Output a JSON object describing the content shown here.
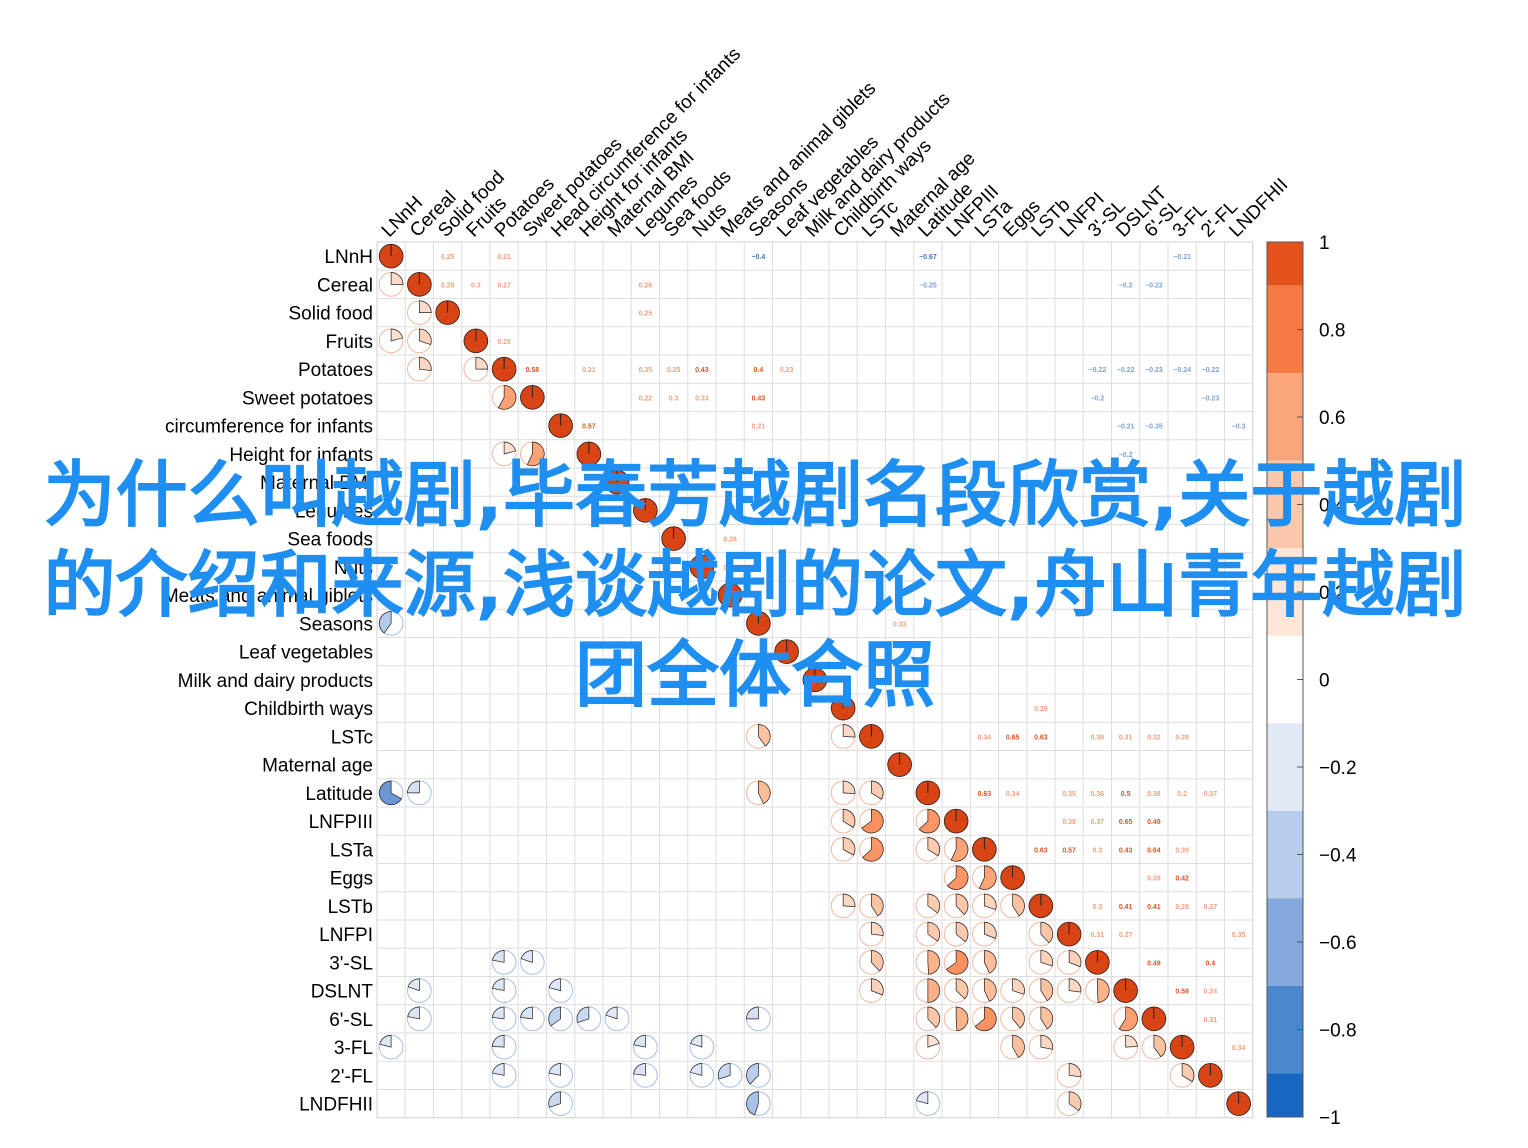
{
  "overlay_title": "为什么叫越剧,毕春芳越剧名段欣赏,关于越剧的介绍和来源,浅谈越剧的论文,舟山青年越剧团全体合照",
  "chart_data": {
    "type": "heatmap",
    "method": "pie",
    "variables": [
      "LNnH",
      "Cereal",
      "Solid food",
      "Fruits",
      "Potatoes",
      "Sweet potatoes",
      "circumference for infants",
      "Height for infants",
      "Maternal BMI",
      "Legumes",
      "Sea foods",
      "Nuts",
      "Meats and animal giblets",
      "Seasons",
      "Leaf vegetables",
      "Milk and dairy products",
      "Childbirth ways",
      "LSTc",
      "Maternal age",
      "Latitude",
      "LNFPIII",
      "LSTa",
      "Eggs",
      "LSTb",
      "LNFPI",
      "3'-SL",
      "DSLNT",
      "6'-SL",
      "3-FL",
      "2'-FL",
      "LNDFHII"
    ],
    "column_labels": [
      "LNnH",
      "Cereal",
      "Solid food",
      "Fruits",
      "Potatoes",
      "Sweet potatoes",
      "Head circumference for infants",
      "Height for infants",
      "Maternal BMI",
      "Legumes",
      "Sea foods",
      "Nuts",
      "Meats and animal giblets",
      "Seasons",
      "Leaf vegetables",
      "Milk and dairy products",
      "Childbirth ways",
      "LSTc",
      "Maternal age",
      "Latitude",
      "LNFPIII",
      "LSTa",
      "Eggs",
      "LSTb",
      "LNFPI",
      "3'-SL",
      "DSLNT",
      "6'-SL",
      "3-FL",
      "2'-FL",
      "LNDFHII"
    ],
    "colorbar": {
      "ticks": [
        "1",
        "0.8",
        "0.6",
        "0.4",
        "0.2",
        "0",
        "−0.2",
        "−0.4",
        "−0.6",
        "−0.8",
        "−1"
      ],
      "colors": [
        "#e3511c",
        "#f67a44",
        "#fba57a",
        "#fcc8ab",
        "#fde5d8",
        "#ffffff",
        "#e1e9f7",
        "#b8cdec",
        "#85a9dc",
        "#4b87cd",
        "#1666c2"
      ],
      "range": [
        -1,
        1
      ]
    },
    "upper_values": [
      [
        0,
        2,
        0.25
      ],
      [
        0,
        4,
        0.21
      ],
      [
        0,
        13,
        -0.4
      ],
      [
        0,
        19,
        -0.67
      ],
      [
        0,
        28,
        -0.21
      ],
      [
        1,
        2,
        0.25
      ],
      [
        1,
        3,
        0.3
      ],
      [
        1,
        4,
        0.27
      ],
      [
        1,
        9,
        0.26
      ],
      [
        1,
        19,
        -0.25
      ],
      [
        1,
        26,
        -0.2
      ],
      [
        1,
        27,
        -0.22
      ],
      [
        2,
        9,
        0.25
      ],
      [
        3,
        4,
        0.25
      ],
      [
        4,
        5,
        0.58
      ],
      [
        4,
        7,
        0.21
      ],
      [
        4,
        9,
        0.35
      ],
      [
        4,
        10,
        0.25
      ],
      [
        4,
        11,
        0.43
      ],
      [
        4,
        13,
        0.4
      ],
      [
        4,
        14,
        0.23
      ],
      [
        4,
        25,
        -0.22
      ],
      [
        4,
        26,
        -0.22
      ],
      [
        4,
        27,
        -0.23
      ],
      [
        4,
        28,
        -0.24
      ],
      [
        4,
        29,
        -0.22
      ],
      [
        5,
        9,
        0.22
      ],
      [
        5,
        10,
        0.3
      ],
      [
        5,
        11,
        0.33
      ],
      [
        5,
        13,
        0.43
      ],
      [
        5,
        25,
        -0.2
      ],
      [
        5,
        29,
        -0.23
      ],
      [
        6,
        7,
        0.57
      ],
      [
        6,
        13,
        0.21
      ],
      [
        6,
        26,
        -0.21
      ],
      [
        6,
        27,
        -0.35
      ],
      [
        6,
        30,
        -0.3
      ],
      [
        7,
        26,
        -0.2
      ],
      [
        10,
        12,
        0.26
      ],
      [
        11,
        12,
        0.27
      ],
      [
        13,
        18,
        0.33
      ],
      [
        16,
        23,
        0.26
      ],
      [
        17,
        21,
        0.34
      ],
      [
        17,
        22,
        0.65
      ],
      [
        17,
        23,
        0.63
      ],
      [
        17,
        25,
        0.38
      ],
      [
        17,
        26,
        0.31
      ],
      [
        17,
        27,
        0.32
      ],
      [
        17,
        28,
        0.28
      ],
      [
        19,
        21,
        0.63
      ],
      [
        19,
        22,
        0.34
      ],
      [
        19,
        24,
        0.35
      ],
      [
        19,
        25,
        0.36
      ],
      [
        19,
        26,
        0.5
      ],
      [
        19,
        27,
        0.38
      ],
      [
        19,
        28,
        0.2
      ],
      [
        19,
        29,
        0.37
      ],
      [
        19,
        31,
        -0.21
      ],
      [
        20,
        24,
        0.38
      ],
      [
        20,
        25,
        0.37
      ],
      [
        20,
        26,
        0.65
      ],
      [
        20,
        27,
        0.49
      ],
      [
        21,
        23,
        0.63
      ],
      [
        21,
        24,
        0.57
      ],
      [
        21,
        25,
        0.3
      ],
      [
        21,
        26,
        0.43
      ],
      [
        21,
        27,
        0.64
      ],
      [
        21,
        28,
        0.39
      ],
      [
        22,
        27,
        0.39
      ],
      [
        22,
        28,
        0.42
      ],
      [
        23,
        25,
        0.3
      ],
      [
        23,
        26,
        0.41
      ],
      [
        23,
        27,
        0.41
      ],
      [
        23,
        28,
        0.28
      ],
      [
        23,
        29,
        0.27
      ],
      [
        24,
        25,
        0.31
      ],
      [
        24,
        26,
        0.27
      ],
      [
        24,
        30,
        0.35
      ],
      [
        25,
        27,
        0.49
      ],
      [
        25,
        29,
        0.4
      ],
      [
        26,
        28,
        0.59
      ],
      [
        26,
        29,
        0.24
      ],
      [
        27,
        29,
        0.31
      ],
      [
        28,
        30,
        0.34
      ]
    ],
    "lower_pies": [
      [
        1,
        0,
        0.25
      ],
      [
        3,
        0,
        0.21
      ],
      [
        3,
        1,
        0.3
      ],
      [
        2,
        1,
        0.25
      ],
      [
        4,
        1,
        0.27
      ],
      [
        4,
        3,
        0.25
      ],
      [
        5,
        4,
        0.58
      ],
      [
        7,
        4,
        0.21
      ],
      [
        7,
        5,
        0.57
      ],
      [
        13,
        0,
        -0.4
      ],
      [
        17,
        13,
        0.4
      ],
      [
        17,
        16,
        0.26
      ],
      [
        19,
        0,
        -0.67
      ],
      [
        19,
        1,
        -0.25
      ],
      [
        19,
        13,
        0.43
      ],
      [
        19,
        16,
        0.26
      ],
      [
        19,
        17,
        0.34
      ],
      [
        20,
        16,
        0.34
      ],
      [
        20,
        17,
        0.65
      ],
      [
        20,
        19,
        0.63
      ],
      [
        21,
        16,
        0.33
      ],
      [
        21,
        17,
        0.63
      ],
      [
        21,
        19,
        0.34
      ],
      [
        21,
        20,
        0.57
      ],
      [
        22,
        20,
        0.63
      ],
      [
        22,
        21,
        0.57
      ],
      [
        23,
        16,
        0.26
      ],
      [
        23,
        17,
        0.41
      ],
      [
        23,
        19,
        0.35
      ],
      [
        23,
        20,
        0.38
      ],
      [
        23,
        21,
        0.3
      ],
      [
        23,
        22,
        0.41
      ],
      [
        24,
        17,
        0.27
      ],
      [
        24,
        19,
        0.35
      ],
      [
        24,
        20,
        0.36
      ],
      [
        24,
        21,
        0.31
      ],
      [
        24,
        23,
        0.38
      ],
      [
        25,
        4,
        -0.22
      ],
      [
        25,
        5,
        -0.2
      ],
      [
        25,
        17,
        0.38
      ],
      [
        25,
        19,
        0.49
      ],
      [
        25,
        20,
        0.65
      ],
      [
        25,
        21,
        0.43
      ],
      [
        25,
        23,
        0.3
      ],
      [
        25,
        24,
        0.31
      ],
      [
        25,
        25,
        0.4
      ],
      [
        26,
        1,
        -0.2
      ],
      [
        26,
        4,
        -0.22
      ],
      [
        26,
        6,
        -0.21
      ],
      [
        26,
        17,
        0.31
      ],
      [
        26,
        19,
        0.5
      ],
      [
        26,
        20,
        0.37
      ],
      [
        26,
        21,
        0.43
      ],
      [
        26,
        22,
        0.3
      ],
      [
        26,
        23,
        0.41
      ],
      [
        26,
        24,
        0.27
      ],
      [
        26,
        25,
        0.49
      ],
      [
        27,
        1,
        -0.22
      ],
      [
        27,
        4,
        -0.23
      ],
      [
        27,
        5,
        -0.23
      ],
      [
        27,
        6,
        -0.35
      ],
      [
        27,
        7,
        -0.3
      ],
      [
        27,
        8,
        -0.2
      ],
      [
        27,
        13,
        -0.25
      ],
      [
        27,
        19,
        0.38
      ],
      [
        27,
        20,
        0.49
      ],
      [
        27,
        21,
        0.64
      ],
      [
        27,
        22,
        0.39
      ],
      [
        27,
        23,
        0.41
      ],
      [
        27,
        26,
        0.59
      ],
      [
        28,
        0,
        -0.21
      ],
      [
        28,
        4,
        -0.24
      ],
      [
        28,
        9,
        -0.22
      ],
      [
        28,
        11,
        -0.2
      ],
      [
        28,
        19,
        0.2
      ],
      [
        28,
        22,
        0.42
      ],
      [
        28,
        23,
        0.28
      ],
      [
        28,
        26,
        0.24
      ],
      [
        28,
        27,
        0.4
      ],
      [
        29,
        4,
        -0.22
      ],
      [
        29,
        6,
        -0.22
      ],
      [
        29,
        9,
        -0.23
      ],
      [
        29,
        11,
        -0.21
      ],
      [
        29,
        12,
        -0.3
      ],
      [
        29,
        13,
        -0.38
      ],
      [
        29,
        24,
        0.27
      ],
      [
        29,
        28,
        0.34
      ],
      [
        30,
        6,
        -0.3
      ],
      [
        30,
        13,
        -0.45
      ],
      [
        30,
        19,
        -0.21
      ],
      [
        30,
        24,
        0.35
      ]
    ]
  }
}
